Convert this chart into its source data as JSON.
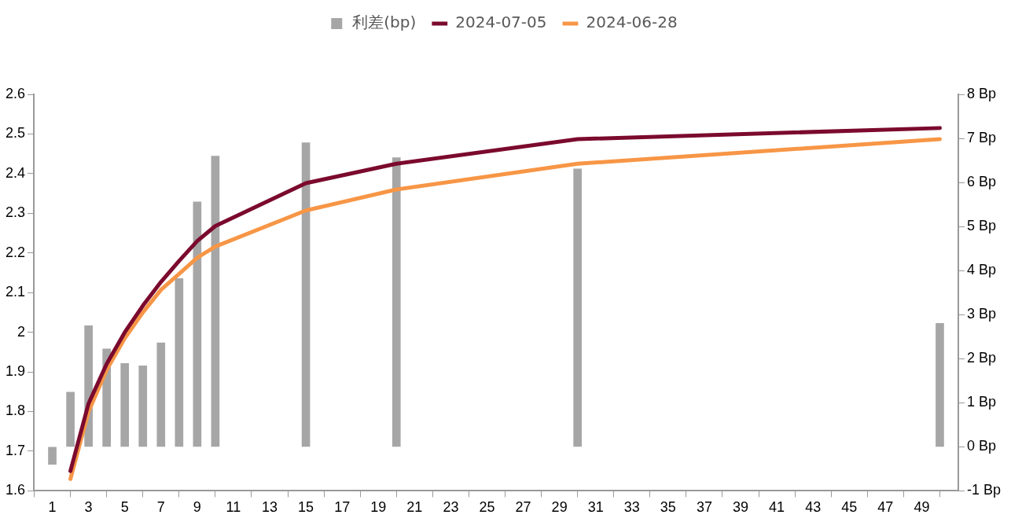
{
  "chart_data": {
    "type": "bar",
    "x": [
      1,
      2,
      3,
      4,
      5,
      6,
      7,
      8,
      9,
      10,
      15,
      20,
      30,
      50
    ],
    "series": [
      {
        "name": "利差(bp)",
        "axis": "y2",
        "color": "#a6a6a6",
        "values": [
          -0.4,
          1.24,
          2.75,
          2.22,
          1.89,
          1.84,
          2.36,
          3.82,
          5.56,
          6.6,
          6.9,
          6.56,
          6.31,
          2.8
        ]
      },
      {
        "name": "2024-07-05",
        "type": "line",
        "color": "#7b0a2e",
        "values": [
          null,
          1.65,
          1.82,
          1.92,
          2.0,
          2.067,
          2.127,
          2.18,
          2.23,
          2.268,
          2.376,
          2.425,
          2.487,
          2.515
        ]
      },
      {
        "name": "2024-06-28",
        "type": "line",
        "color": "#f79646",
        "values": [
          null,
          1.63,
          1.8,
          1.905,
          1.985,
          2.05,
          2.107,
          2.147,
          2.188,
          2.216,
          2.307,
          2.36,
          2.425,
          2.487
        ]
      }
    ],
    "xlim": [
      1,
      50
    ],
    "xticks": [
      1,
      3,
      5,
      7,
      9,
      11,
      13,
      15,
      17,
      19,
      21,
      23,
      25,
      27,
      29,
      31,
      33,
      35,
      37,
      39,
      41,
      43,
      45,
      47,
      49
    ],
    "ylim": [
      1.6,
      2.6
    ],
    "yticks": [
      1.6,
      1.7,
      1.8,
      1.9,
      2,
      2.1,
      2.2,
      2.3,
      2.4,
      2.5,
      2.6
    ],
    "y2lim": [
      -1,
      8
    ],
    "y2ticks": [
      {
        "value": -1,
        "label": "-1 Bp"
      },
      {
        "value": 0,
        "label": "0 Bp"
      },
      {
        "value": 1,
        "label": "1 Bp"
      },
      {
        "value": 2,
        "label": "2 Bp"
      },
      {
        "value": 3,
        "label": "3 Bp"
      },
      {
        "value": 4,
        "label": "4 Bp"
      },
      {
        "value": 5,
        "label": "5 Bp"
      },
      {
        "value": 6,
        "label": "6 Bp"
      },
      {
        "value": 7,
        "label": "7 Bp"
      },
      {
        "value": 8,
        "label": "8 Bp"
      }
    ],
    "grid": false,
    "legend": "top",
    "marker": "none",
    "line_style": "solid"
  }
}
